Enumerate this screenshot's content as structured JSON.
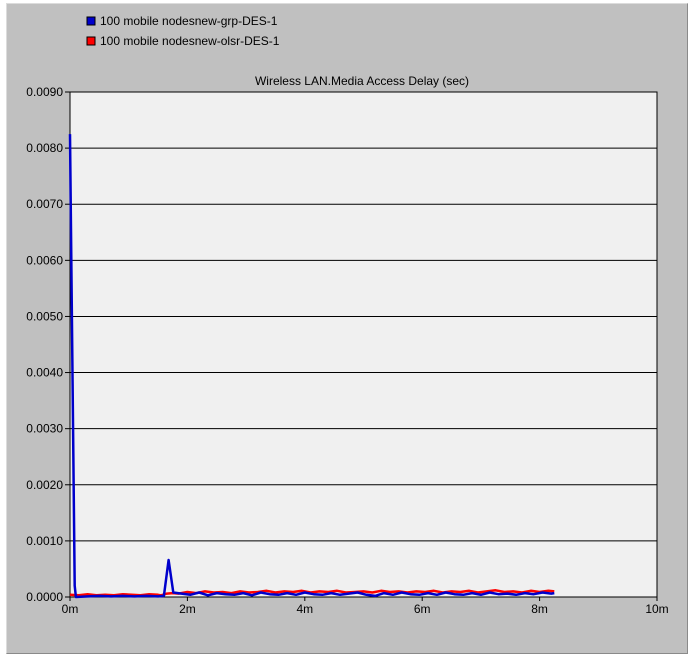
{
  "chart_data": {
    "type": "line",
    "title": "Wireless LAN.Media Access Delay (sec)",
    "xlabel": "",
    "ylabel": "",
    "x_ticks": [
      "0m",
      "2m",
      "4m",
      "6m",
      "8m",
      "10m"
    ],
    "y_ticks": [
      "0.0000",
      "0.0010",
      "0.0020",
      "0.0030",
      "0.0040",
      "0.0050",
      "0.0060",
      "0.0070",
      "0.0080",
      "0.0090"
    ],
    "xlim": [
      0,
      10
    ],
    "ylim": [
      0,
      0.009
    ],
    "grid": "horizontal",
    "legend_placement": "top-left",
    "series": [
      {
        "name": "100 mobile nodesnew-olsr-DES-1",
        "color": "#ff0000",
        "x": [
          0,
          0.15,
          0.3,
          0.45,
          0.6,
          0.75,
          0.9,
          1.05,
          1.2,
          1.35,
          1.5,
          1.55,
          1.65,
          1.75,
          1.85,
          2.0,
          2.15,
          2.3,
          2.45,
          2.6,
          2.75,
          2.9,
          3.05,
          3.2,
          3.35,
          3.5,
          3.65,
          3.8,
          3.95,
          4.1,
          4.25,
          4.4,
          4.55,
          4.7,
          4.85,
          5.0,
          5.15,
          5.3,
          5.45,
          5.6,
          5.75,
          5.9,
          6.05,
          6.2,
          6.35,
          6.5,
          6.65,
          6.8,
          6.95,
          7.1,
          7.25,
          7.4,
          7.55,
          7.7,
          7.85,
          8.0,
          8.15,
          8.25
        ],
        "y": [
          4e-05,
          3e-05,
          5e-05,
          3e-05,
          4e-05,
          3e-05,
          5e-05,
          4e-05,
          3e-05,
          5e-05,
          4e-05,
          3e-05,
          6e-05,
          7e-05,
          6e-05,
          9e-05,
          7e-05,
          0.0001,
          8e-05,
          9e-05,
          7e-05,
          0.0001,
          8e-05,
          9e-05,
          0.00011,
          8e-05,
          0.0001,
          9e-05,
          0.00011,
          8e-05,
          0.0001,
          9e-05,
          0.00011,
          8e-05,
          9e-05,
          0.0001,
          8e-05,
          0.00011,
          9e-05,
          0.0001,
          8e-05,
          0.0001,
          9e-05,
          0.00011,
          8e-05,
          0.0001,
          9e-05,
          0.00011,
          8e-05,
          0.0001,
          0.00012,
          9e-05,
          0.0001,
          8e-05,
          0.00011,
          9e-05,
          0.00011,
          0.0001
        ]
      },
      {
        "name": "100 mobile nodesnew-grp-DES-1",
        "color": "#0000cc",
        "x": [
          0,
          0.08,
          0.1,
          0.3,
          0.5,
          0.7,
          0.9,
          1.1,
          1.3,
          1.5,
          1.6,
          1.68,
          1.76,
          1.9,
          2.05,
          2.2,
          2.35,
          2.5,
          2.65,
          2.8,
          2.95,
          3.1,
          3.25,
          3.4,
          3.55,
          3.7,
          3.85,
          4.0,
          4.15,
          4.3,
          4.45,
          4.6,
          4.75,
          4.9,
          5.05,
          5.2,
          5.35,
          5.5,
          5.65,
          5.8,
          5.95,
          6.1,
          6.25,
          6.4,
          6.55,
          6.7,
          6.85,
          7.0,
          7.15,
          7.3,
          7.45,
          7.6,
          7.75,
          7.9,
          8.05,
          8.2,
          8.25
        ],
        "y": [
          0.00825,
          0.0002,
          0.0,
          1e-05,
          2e-05,
          1e-05,
          2e-05,
          1e-05,
          2e-05,
          1e-05,
          2e-05,
          0.00066,
          8e-05,
          6e-05,
          4e-05,
          8e-05,
          3e-05,
          7e-05,
          5e-05,
          4e-05,
          7e-05,
          3e-05,
          8e-05,
          5e-05,
          4e-05,
          7e-05,
          4e-05,
          8e-05,
          5e-05,
          4e-05,
          7e-05,
          4e-05,
          6e-05,
          8e-05,
          4e-05,
          2e-05,
          7e-05,
          4e-05,
          8e-05,
          5e-05,
          4e-05,
          7e-05,
          4e-05,
          8e-05,
          5e-05,
          4e-05,
          7e-05,
          4e-05,
          8e-05,
          5e-05,
          6e-05,
          4e-05,
          7e-05,
          5e-05,
          8e-05,
          6e-05,
          7e-05
        ]
      }
    ],
    "legend": [
      {
        "label": "100 mobile nodesnew-grp-DES-1",
        "color": "#0000cc"
      },
      {
        "label": "100 mobile nodesnew-olsr-DES-1",
        "color": "#ff0000"
      }
    ]
  }
}
